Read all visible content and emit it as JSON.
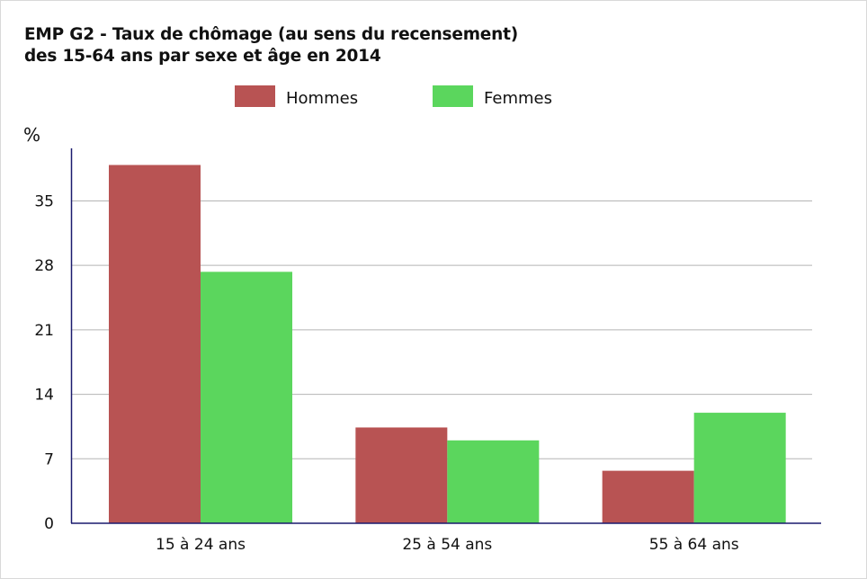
{
  "chart_data": {
    "type": "bar",
    "title_line1": "EMP G2 - Taux de chômage (au sens du recensement)",
    "title_line2": "des 15-64 ans par sexe et âge en 2014",
    "ylabel": "%",
    "xlabel": "",
    "categories": [
      "15 à 24 ans",
      "25 à 54 ans",
      "55 à 64 ans"
    ],
    "series": [
      {
        "name": "Hommes",
        "color": "#b85353",
        "values": [
          38.9,
          10.4,
          5.7
        ]
      },
      {
        "name": "Femmes",
        "color": "#5bd65d",
        "values": [
          27.3,
          9.0,
          12.0
        ]
      }
    ],
    "yticks": [
      0,
      7,
      14,
      21,
      28,
      35
    ],
    "ylim": [
      0,
      41
    ],
    "grid": true,
    "legend_position": "top-center"
  }
}
